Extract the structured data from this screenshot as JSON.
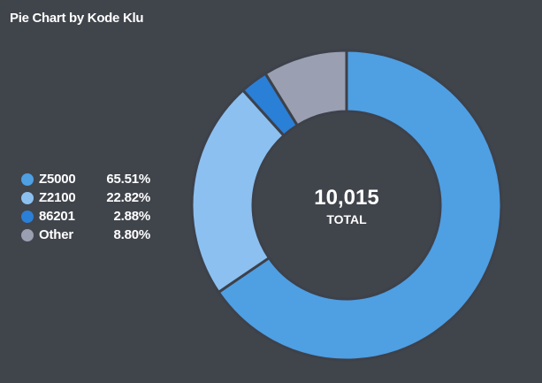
{
  "title": "Pie Chart by Kode Klu",
  "center": {
    "value": "10,015",
    "label": "TOTAL"
  },
  "legend": [
    {
      "name": "Z5000",
      "pct": "65.51%",
      "color": "#4f9fe3"
    },
    {
      "name": "Z2100",
      "pct": "22.82%",
      "color": "#8cc0f0"
    },
    {
      "name": "86201",
      "pct": "2.88%",
      "color": "#2a7fd6"
    },
    {
      "name": "Other",
      "pct": "8.80%",
      "color": "#9a9fb1"
    }
  ],
  "colors": {
    "background": "#40444b",
    "slice_separator": "#3d414a"
  },
  "chart_data": {
    "type": "pie",
    "title": "Pie Chart by Kode Klu",
    "categories": [
      "Z5000",
      "Z2100",
      "86201",
      "Other"
    ],
    "values": [
      65.51,
      22.82,
      2.88,
      8.8
    ],
    "unit": "%",
    "total": 10015,
    "legend_position": "left",
    "start": "top, clockwise",
    "style": "donut"
  }
}
